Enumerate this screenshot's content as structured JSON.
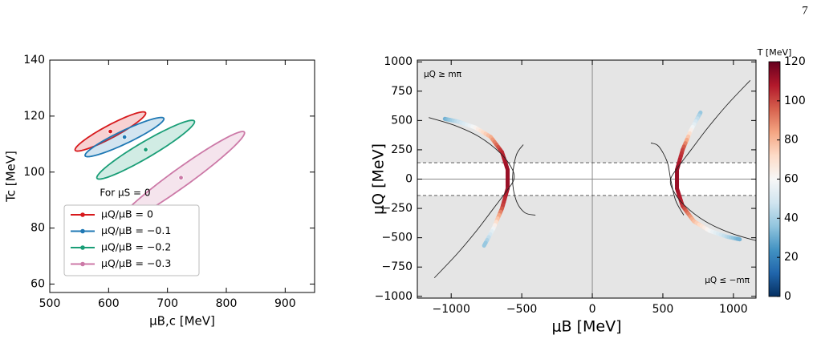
{
  "page_number": "7",
  "chart_data": [
    {
      "type": "ellipse",
      "xlabel": "μB,c [MeV]",
      "ylabel": "Tc [MeV]",
      "xlim": [
        500,
        950
      ],
      "ylim": [
        57,
        140
      ],
      "xticks": [
        500,
        600,
        700,
        800,
        900
      ],
      "yticks": [
        60,
        80,
        100,
        120,
        140
      ],
      "legend_title": "For μS = 0",
      "legend": "lower left",
      "series": [
        {
          "name": "μQ/μB = 0",
          "color": "#d7191c",
          "x": 603,
          "y": 114.5,
          "sigma_x": 60,
          "sigma_y": 7,
          "rho": 0.93
        },
        {
          "name": "μQ/μB = −0.1",
          "color": "#1f78b4",
          "x": 627,
          "y": 112.5,
          "sigma_x": 67,
          "sigma_y": 7,
          "rho": 0.93
        },
        {
          "name": "μQ/μB = −0.2",
          "color": "#1a9e77",
          "x": 663,
          "y": 108,
          "sigma_x": 83,
          "sigma_y": 10.5,
          "rho": 0.95
        },
        {
          "name": "μQ/μB = −0.3",
          "color": "#cc79a7",
          "x": 723,
          "y": 98,
          "sigma_x": 108,
          "sigma_y": 16.5,
          "rho": 0.97
        }
      ]
    },
    {
      "type": "line",
      "xlabel": "μB [MeV]",
      "ylabel": "μQ [MeV]",
      "xlim": [
        -1240,
        1160
      ],
      "ylim": [
        -1015,
        1015
      ],
      "xticks": [
        {
          "value": -1000,
          "label": "−1000"
        },
        {
          "value": -500,
          "label": "−500"
        },
        0,
        500,
        1000
      ],
      "yticks": [
        {
          "value": -1000,
          "label": "−1000"
        },
        {
          "value": -750,
          "label": "−750"
        },
        {
          "value": -500,
          "label": "−500"
        },
        {
          "value": -250,
          "label": "−250"
        },
        0,
        250,
        500,
        750,
        1000
      ],
      "annotations": [
        "μQ ≥ mπ",
        "μQ ≤ −mπ"
      ],
      "hlines": [
        140,
        -140
      ],
      "colormap": "RdBu_r",
      "colorbar": {
        "label": "T [MeV]",
        "lim": [
          0,
          120
        ],
        "ticks": [
          0,
          20,
          40,
          60,
          80,
          100,
          120
        ]
      },
      "series": [
        {
          "color": "#222222",
          "x": [
            1119,
            960,
            820,
            700,
            600,
            555,
            570,
            650,
            800,
            980,
            1159
          ],
          "y": [
            842,
            640,
            440,
            250,
            90,
            0,
            -90,
            -220,
            -360,
            -460,
            -525
          ]
        },
        {
          "color": "#222222",
          "x": [
            -1119,
            -960,
            -820,
            -700,
            -600,
            -555,
            -570,
            -650,
            -800,
            -980,
            -1159
          ],
          "y": [
            -842,
            -640,
            -440,
            -250,
            -90,
            0,
            90,
            220,
            360,
            460,
            525
          ]
        },
        {
          "color": "#222222",
          "x": [
            415,
            470,
            530,
            555,
            590,
            648
          ],
          "y": [
            308,
            280,
            150,
            0,
            -180,
            -308
          ]
        },
        {
          "color": "#222222",
          "x": [
            -489,
            -540,
            -565,
            -540,
            -480,
            -403
          ],
          "y": [
            294,
            200,
            0,
            -180,
            -285,
            -308
          ]
        }
      ],
      "bands": [
        {
          "x": [
            767,
            700,
            640,
            600,
            600,
            640,
            720,
            830,
            950,
            1045
          ],
          "y": [
            568,
            420,
            250,
            80,
            -80,
            -230,
            -360,
            -440,
            -490,
            -514
          ],
          "c": [
            35,
            60,
            100,
            112,
            112,
            105,
            80,
            60,
            45,
            30
          ]
        },
        {
          "x": [
            -1045,
            -950,
            -830,
            -720,
            -640,
            -600,
            -600,
            -640,
            -700,
            -767
          ],
          "y": [
            514,
            490,
            440,
            360,
            230,
            80,
            -80,
            -250,
            -420,
            -568
          ],
          "c": [
            30,
            45,
            60,
            80,
            105,
            112,
            112,
            100,
            60,
            35
          ]
        }
      ]
    }
  ]
}
